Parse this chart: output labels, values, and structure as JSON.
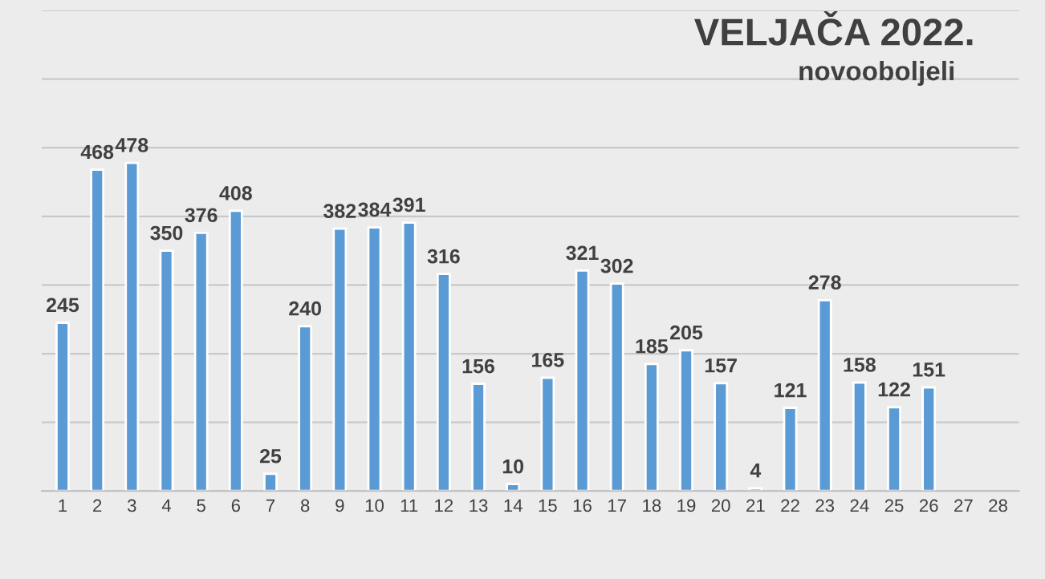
{
  "chart_data": {
    "type": "bar",
    "title": "VELJAČA 2022.",
    "subtitle": "novooboljeli",
    "categories": [
      "1",
      "2",
      "3",
      "4",
      "5",
      "6",
      "7",
      "8",
      "9",
      "10",
      "11",
      "12",
      "13",
      "14",
      "15",
      "16",
      "17",
      "18",
      "19",
      "20",
      "21",
      "22",
      "23",
      "24",
      "25",
      "26",
      "27",
      "28"
    ],
    "values": [
      245,
      468,
      478,
      350,
      376,
      408,
      25,
      240,
      382,
      384,
      391,
      316,
      156,
      10,
      165,
      321,
      302,
      185,
      205,
      157,
      4,
      121,
      278,
      158,
      122,
      151,
      null,
      null
    ],
    "color": "#5b9bd5",
    "data_labels": true,
    "ylim": [
      0,
      700
    ],
    "yticks": [
      {
        "value": 0,
        "label": null
      },
      {
        "value": 100,
        "label": null
      },
      {
        "value": 200,
        "label": null
      },
      {
        "value": 300,
        "label": null
      },
      {
        "value": 400,
        "label": null
      },
      {
        "value": 500,
        "label": null
      },
      {
        "value": 600,
        "label": null
      },
      {
        "value": 700,
        "label": null
      }
    ],
    "tick_labels": "x",
    "grid": "y",
    "legend": false
  }
}
